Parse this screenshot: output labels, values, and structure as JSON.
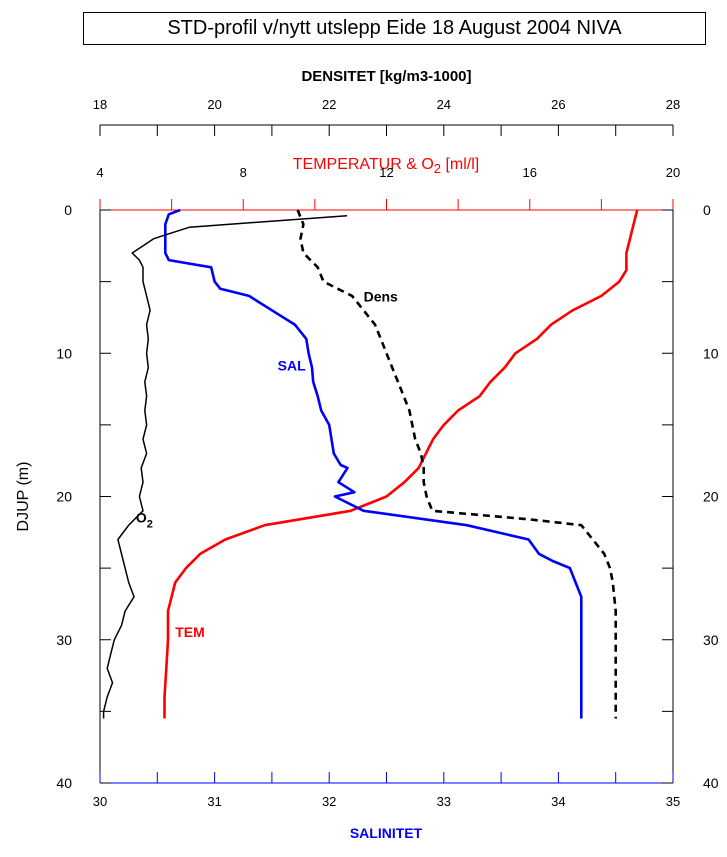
{
  "title": "STD-profil v/nytt utslepp Eide 18 August 2004 NIVA",
  "colors": {
    "temperature": "#ff0000",
    "salinity": "#0000ff",
    "oxygen": "#000000",
    "density": "#000000"
  },
  "chart_data": {
    "type": "line",
    "title": "STD-profil v/nytt utslepp Eide 18 August 2004 NIVA",
    "ylabel": "DJUP (m)",
    "y_range": [
      0,
      40
    ],
    "y_ticks": [
      "0",
      "10",
      "20",
      "30",
      "40"
    ],
    "axes": {
      "density": {
        "label": "DENSITET [kg/m3-1000]",
        "range": [
          18,
          28
        ],
        "ticks": [
          "18",
          "20",
          "22",
          "24",
          "26",
          "28"
        ],
        "color": "#000000"
      },
      "temperature": {
        "label_main": "TEMPERATUR & O",
        "label_sub": "2",
        "label_tail": " [ml/l]",
        "range": [
          4,
          20
        ],
        "ticks": [
          "4",
          "8",
          "12",
          "16",
          "20"
        ],
        "color": "#ff0000"
      },
      "salinity": {
        "label": "SALINITET",
        "range": [
          30,
          35
        ],
        "ticks": [
          "30",
          "31",
          "32",
          "33",
          "34",
          "35"
        ],
        "color": "#0000ff"
      }
    },
    "series": [
      {
        "name": "TEM",
        "axis": "temperature",
        "color": "#ff0000",
        "style": "solid",
        "points": [
          [
            19.0,
            0
          ],
          [
            18.9,
            1
          ],
          [
            18.8,
            2
          ],
          [
            18.7,
            3
          ],
          [
            18.7,
            4.2
          ],
          [
            18.5,
            5
          ],
          [
            18.0,
            6
          ],
          [
            17.2,
            7
          ],
          [
            16.6,
            8
          ],
          [
            16.2,
            9
          ],
          [
            15.6,
            10
          ],
          [
            15.3,
            11
          ],
          [
            14.9,
            12
          ],
          [
            14.6,
            13
          ],
          [
            14.0,
            14
          ],
          [
            13.6,
            15
          ],
          [
            13.3,
            16
          ],
          [
            13.1,
            17
          ],
          [
            12.9,
            18
          ],
          [
            12.5,
            19
          ],
          [
            12.0,
            20
          ],
          [
            11.0,
            21
          ],
          [
            8.6,
            22
          ],
          [
            7.5,
            23
          ],
          [
            6.8,
            24
          ],
          [
            6.4,
            25
          ],
          [
            6.1,
            26
          ],
          [
            6.0,
            27
          ],
          [
            5.9,
            28
          ],
          [
            5.9,
            30
          ],
          [
            5.85,
            32
          ],
          [
            5.8,
            34
          ],
          [
            5.8,
            35.5
          ]
        ]
      },
      {
        "name": "SAL",
        "axis": "salinity",
        "color": "#0000ff",
        "style": "solid",
        "points": [
          [
            30.7,
            0
          ],
          [
            30.6,
            0.3
          ],
          [
            30.57,
            1
          ],
          [
            30.57,
            2
          ],
          [
            30.57,
            3
          ],
          [
            30.6,
            3.5
          ],
          [
            30.97,
            4
          ],
          [
            31.0,
            5
          ],
          [
            31.05,
            5.5
          ],
          [
            31.3,
            6
          ],
          [
            31.5,
            7
          ],
          [
            31.7,
            8
          ],
          [
            31.8,
            9
          ],
          [
            31.82,
            10
          ],
          [
            31.85,
            11
          ],
          [
            31.86,
            12
          ],
          [
            31.9,
            13
          ],
          [
            31.93,
            14
          ],
          [
            32.0,
            15
          ],
          [
            32.02,
            16
          ],
          [
            32.04,
            17
          ],
          [
            32.1,
            17.8
          ],
          [
            32.16,
            18
          ],
          [
            32.08,
            19
          ],
          [
            32.22,
            19.7
          ],
          [
            32.05,
            20
          ],
          [
            32.3,
            21
          ],
          [
            33.2,
            22
          ],
          [
            33.74,
            23
          ],
          [
            33.83,
            24
          ],
          [
            33.95,
            24.5
          ],
          [
            34.1,
            25
          ],
          [
            34.15,
            26
          ],
          [
            34.2,
            27
          ],
          [
            34.2,
            29
          ],
          [
            34.2,
            31
          ],
          [
            34.2,
            33
          ],
          [
            34.2,
            35.5
          ]
        ]
      },
      {
        "name": "O₂",
        "axis": "temperature",
        "color": "#000000",
        "style": "solid",
        "points": [
          [
            10.9,
            0.4
          ],
          [
            6.5,
            1.2
          ],
          [
            5.5,
            2
          ],
          [
            4.9,
            3
          ],
          [
            5.1,
            3.5
          ],
          [
            5.2,
            4
          ],
          [
            5.2,
            5
          ],
          [
            5.3,
            6
          ],
          [
            5.4,
            7
          ],
          [
            5.3,
            8
          ],
          [
            5.35,
            9
          ],
          [
            5.3,
            10
          ],
          [
            5.35,
            11
          ],
          [
            5.25,
            12
          ],
          [
            5.3,
            13
          ],
          [
            5.25,
            14
          ],
          [
            5.3,
            15
          ],
          [
            5.2,
            16
          ],
          [
            5.3,
            17
          ],
          [
            5.15,
            18
          ],
          [
            5.2,
            19
          ],
          [
            5.1,
            20
          ],
          [
            5.2,
            21
          ],
          [
            4.8,
            22
          ],
          [
            4.5,
            23
          ],
          [
            4.6,
            24
          ],
          [
            4.7,
            25
          ],
          [
            4.8,
            26
          ],
          [
            4.95,
            27
          ],
          [
            4.7,
            28
          ],
          [
            4.6,
            29
          ],
          [
            4.4,
            30
          ],
          [
            4.3,
            31
          ],
          [
            4.2,
            32
          ],
          [
            4.35,
            33
          ],
          [
            4.2,
            34
          ],
          [
            4.1,
            35
          ],
          [
            4.1,
            35.5
          ]
        ]
      },
      {
        "name": "Dens",
        "axis": "density",
        "color": "#000000",
        "style": "dashed",
        "points": [
          [
            21.45,
            0
          ],
          [
            21.5,
            0.5
          ],
          [
            21.55,
            1
          ],
          [
            21.5,
            2
          ],
          [
            21.55,
            3
          ],
          [
            21.8,
            4
          ],
          [
            21.9,
            5
          ],
          [
            22.15,
            5.5
          ],
          [
            22.4,
            6
          ],
          [
            22.6,
            7
          ],
          [
            22.8,
            8
          ],
          [
            22.9,
            9
          ],
          [
            23.0,
            10
          ],
          [
            23.1,
            11
          ],
          [
            23.2,
            12
          ],
          [
            23.3,
            13
          ],
          [
            23.4,
            14
          ],
          [
            23.45,
            15
          ],
          [
            23.5,
            16
          ],
          [
            23.6,
            17
          ],
          [
            23.65,
            18
          ],
          [
            23.65,
            19
          ],
          [
            23.7,
            20
          ],
          [
            23.8,
            21
          ],
          [
            25.5,
            21.6
          ],
          [
            26.4,
            22
          ],
          [
            26.6,
            23
          ],
          [
            26.8,
            24
          ],
          [
            26.9,
            25
          ],
          [
            26.95,
            26
          ],
          [
            27.0,
            28
          ],
          [
            27.0,
            32
          ],
          [
            27.0,
            35.5
          ]
        ]
      }
    ],
    "annotations": [
      {
        "text": "Dens",
        "color": "#000000",
        "at_axis": "density",
        "x": 22.6,
        "y": 6.4
      },
      {
        "text": "SAL",
        "color": "#0000ff",
        "at_axis": "salinity",
        "x": 31.55,
        "y": 11.2
      },
      {
        "text": "O",
        "sub": "2",
        "color": "#000000",
        "at_axis": "temperature",
        "x": 5.0,
        "y": 21.8
      },
      {
        "text": "TEM",
        "color": "#ff0000",
        "at_axis": "temperature",
        "x": 6.1,
        "y": 29.8
      }
    ]
  }
}
